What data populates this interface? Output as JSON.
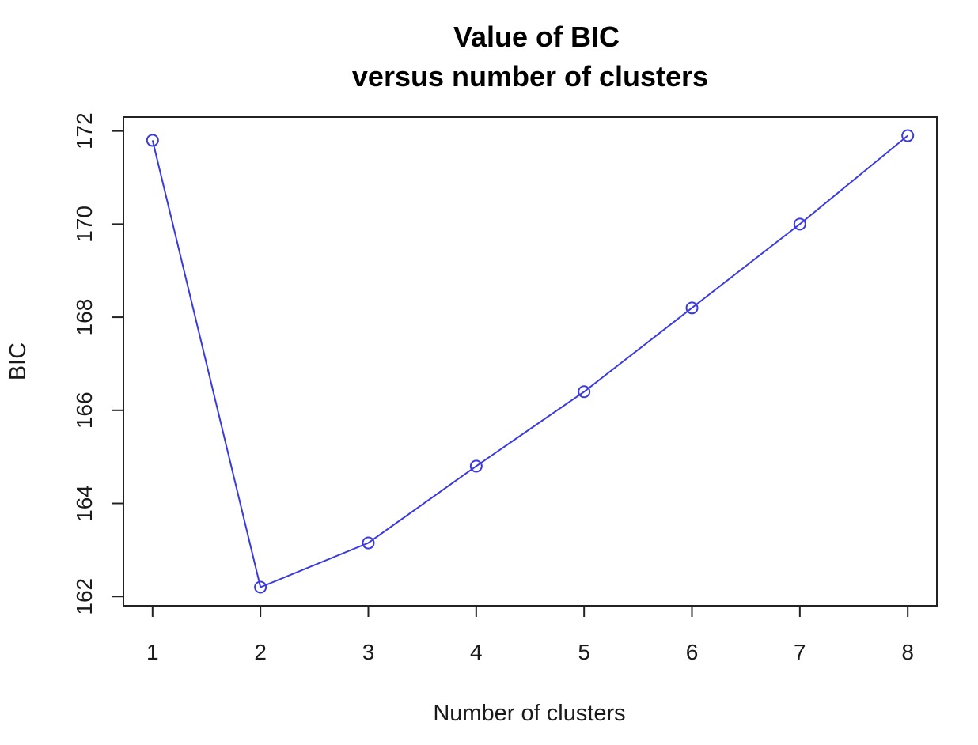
{
  "chart_data": {
    "type": "line",
    "title": "Value of BIC",
    "subtitle": "versus number of clusters",
    "xlabel": "Number of clusters",
    "ylabel": "BIC",
    "x": [
      1,
      2,
      3,
      4,
      5,
      6,
      7,
      8
    ],
    "series": [
      {
        "values": [
          171.8,
          162.2,
          163.15,
          164.8,
          166.4,
          168.2,
          170.0,
          171.9
        ]
      }
    ],
    "xticks": [
      1,
      2,
      3,
      4,
      5,
      6,
      7,
      8
    ],
    "xtick_labels": [
      "1",
      "2",
      "3",
      "4",
      "5",
      "6",
      "7",
      "8"
    ],
    "yticks": [
      162,
      164,
      166,
      168,
      170,
      172
    ],
    "ytick_labels": [
      "162",
      "164",
      "166",
      "168",
      "170",
      "172"
    ],
    "xlim": [
      0.73,
      8.27
    ],
    "ylim": [
      161.8,
      172.3
    ],
    "grid": false,
    "marker": "open-circle",
    "color": "#3a3adf"
  }
}
